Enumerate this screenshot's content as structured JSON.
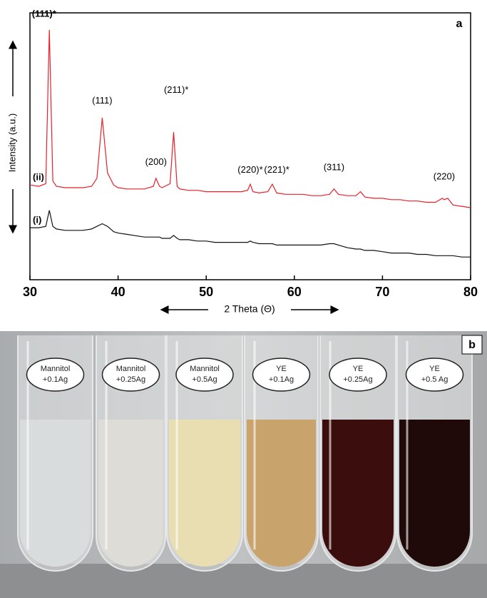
{
  "chart_data": {
    "type": "line",
    "ylabel": "Intensity (a.u.)",
    "xlabel": "2 Theta (Θ)",
    "panel_label": "a",
    "xlim": [
      30,
      80
    ],
    "ylim": [
      0,
      100
    ],
    "xticks": [
      30,
      40,
      50,
      60,
      70,
      80
    ],
    "x": [
      30,
      31,
      31.8,
      32.2,
      32.6,
      33,
      34,
      35,
      36,
      37,
      37.6,
      38.2,
      38.8,
      39.5,
      40,
      41,
      42,
      43,
      44,
      44.3,
      44.7,
      45,
      45.9,
      46.3,
      46.7,
      47,
      48,
      49,
      50,
      51,
      52,
      53,
      54,
      54.7,
      55,
      55.3,
      56,
      57,
      57.5,
      58,
      59,
      60,
      61,
      62,
      63,
      64,
      64.5,
      65,
      66,
      67,
      67.5,
      68,
      69,
      70,
      71,
      72,
      73,
      74,
      75,
      76,
      76.8,
      77,
      77.4,
      78,
      79,
      80
    ],
    "series": [
      {
        "name": "(ii)",
        "color": "#e8202a",
        "values": [
          35.5,
          35,
          36,
          93.6,
          37,
          35,
          34.5,
          34.5,
          34.5,
          35,
          38,
          60.7,
          40,
          35.5,
          34.5,
          34,
          34,
          34,
          35,
          38,
          35,
          34.5,
          36,
          55.3,
          35,
          34,
          33.5,
          33.5,
          33,
          33,
          33,
          33,
          33,
          33.5,
          35.8,
          33,
          32.5,
          33,
          35.8,
          32.5,
          32,
          32,
          32,
          31.5,
          31.5,
          32,
          34,
          32,
          31.5,
          31.5,
          33,
          31,
          30.5,
          30.5,
          30,
          30,
          29.5,
          29.5,
          29,
          29,
          30.5,
          30,
          30.5,
          28,
          27.5,
          27
        ]
      },
      {
        "name": "(i)",
        "color": "#111111",
        "values": [
          19.5,
          19.5,
          20,
          26,
          20,
          19,
          18.5,
          18.5,
          18.5,
          19,
          20,
          21,
          20,
          18,
          17.5,
          17,
          16.5,
          16,
          16,
          16,
          16,
          15.5,
          15.5,
          16.6,
          15.5,
          15,
          15,
          14.5,
          14.5,
          14,
          14,
          14,
          14,
          14,
          14.5,
          14,
          13.5,
          13.5,
          13.5,
          13,
          13,
          13,
          13,
          13,
          13,
          13.5,
          13.5,
          13,
          12,
          11.5,
          11.5,
          11,
          11,
          10.5,
          10,
          10,
          10,
          9.5,
          9.5,
          9,
          9,
          9,
          9,
          9,
          8.5,
          8.5
        ]
      }
    ],
    "annotations": [
      {
        "text": "(111)*",
        "x": 31.6,
        "y": 99.5
      },
      {
        "text": "(111)",
        "x": 38.2,
        "y": 67
      },
      {
        "text": "(200)",
        "x": 44.3,
        "y": 44
      },
      {
        "text": "(211)*",
        "x": 46.6,
        "y": 71
      },
      {
        "text": "(220)*",
        "x": 55,
        "y": 41
      },
      {
        "text": "(221)*",
        "x": 58,
        "y": 41
      },
      {
        "text": "(311)",
        "x": 64.5,
        "y": 42
      },
      {
        "text": "(220)",
        "x": 77,
        "y": 38.5
      }
    ]
  },
  "photo": {
    "panel_label": "b",
    "labels": [
      [
        "Mannitol",
        "+0.1Ag"
      ],
      [
        "Mannitol",
        "+0.25Ag"
      ],
      [
        "Mannitol",
        "+0.5Ag"
      ],
      [
        "YE",
        "+0.1Ag"
      ],
      [
        "YE",
        "+0.25Ag"
      ],
      [
        "YE",
        "+0.5 Ag"
      ]
    ]
  }
}
